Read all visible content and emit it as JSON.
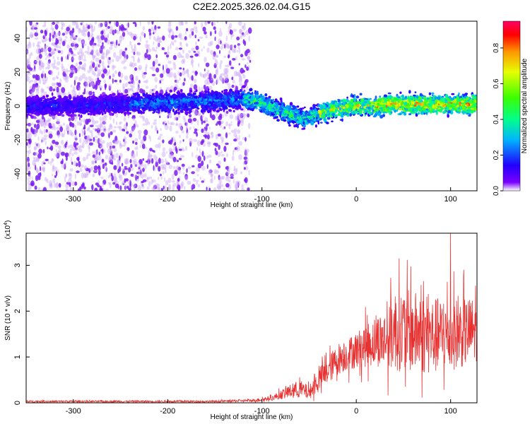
{
  "title": "C2E2.2025.326.02.04.G15",
  "chart_data": [
    {
      "type": "heatmap",
      "name": "spectrogram",
      "xlabel": "Height of straight line (km)",
      "ylabel": "Frequency (Hz)",
      "xlim": [
        -350,
        128
      ],
      "ylim": [
        -50,
        50
      ],
      "xticks": [
        -300,
        -200,
        -100,
        0,
        100
      ],
      "xtick_labels": [
        "-300",
        "-200",
        "-100",
        "0",
        "100"
      ],
      "yticks": [
        -40,
        -20,
        0,
        20,
        40
      ],
      "ytick_labels": [
        "-40",
        "-20",
        "0",
        "20",
        "40"
      ],
      "noise_region_x": [
        -350,
        -120
      ],
      "ridge": {
        "x": [
          -350,
          -300,
          -250,
          -200,
          -150,
          -120,
          -100,
          -85,
          -70,
          -55,
          -45,
          -30,
          -15,
          0,
          20,
          40,
          60,
          80,
          100,
          128
        ],
        "y": [
          0,
          0,
          1,
          2,
          3,
          4,
          2,
          -2,
          -5,
          -7,
          -6,
          -3,
          -1,
          0,
          0,
          1,
          1,
          1,
          1,
          1
        ]
      },
      "colorbar": {
        "label": "Normalized spectral amplitude",
        "range": [
          0,
          0.95
        ],
        "ticks": [
          0.0,
          0.2,
          0.4,
          0.6,
          0.8
        ],
        "tick_labels": [
          "0.0",
          "0.2",
          "0.4",
          "0.6",
          "0.8"
        ]
      }
    },
    {
      "type": "line",
      "name": "snr",
      "xlabel": "Height of straight line (km)",
      "ylabel": "SNR (10 * v/v)",
      "scale_label": "(x10",
      "scale_exp": "4",
      "scale_close": ")",
      "xlim": [
        -350,
        128
      ],
      "ylim": [
        0,
        3.7
      ],
      "xticks": [
        -300,
        -200,
        -100,
        0,
        100
      ],
      "xtick_labels": [
        "-300",
        "-200",
        "-100",
        "0",
        "100"
      ],
      "yticks": [
        0,
        1,
        2,
        3
      ],
      "ytick_labels": [
        "0",
        "1",
        "2",
        "3"
      ],
      "color": "#e83232",
      "envelope": {
        "x": [
          -350,
          -150,
          -110,
          -90,
          -70,
          -60,
          -50,
          -40,
          -30,
          -20,
          -10,
          0,
          20,
          35,
          40,
          60,
          80,
          100,
          120,
          128
        ],
        "mean": [
          0.03,
          0.03,
          0.05,
          0.1,
          0.25,
          0.3,
          0.22,
          0.5,
          0.7,
          0.95,
          1.05,
          1.15,
          1.35,
          1.4,
          1.6,
          1.55,
          1.45,
          1.5,
          1.55,
          1.6
        ],
        "spread": [
          0.02,
          0.02,
          0.03,
          0.05,
          0.15,
          0.2,
          0.15,
          0.25,
          0.3,
          0.35,
          0.35,
          0.4,
          0.55,
          0.7,
          0.9,
          0.9,
          0.85,
          0.8,
          0.75,
          0.7
        ]
      },
      "peak": {
        "x": 100,
        "y": 3.75
      }
    }
  ]
}
